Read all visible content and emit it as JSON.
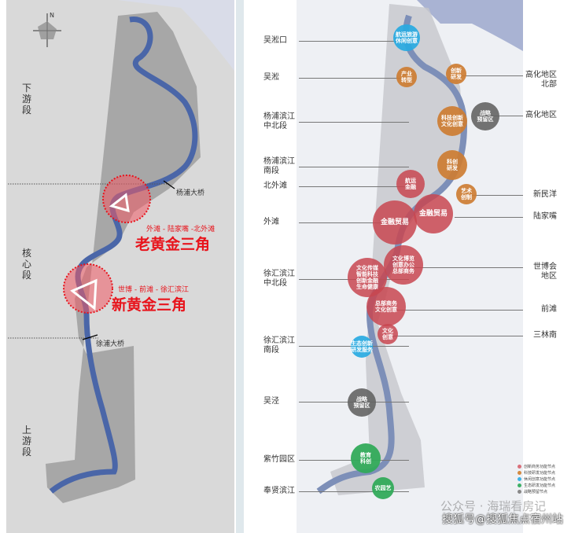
{
  "left_map": {
    "compass": "N",
    "segments": [
      "下游段",
      "核心段",
      "上游段"
    ],
    "bridges": [
      "杨浦大桥",
      "徐浦大桥"
    ],
    "old_triangle": {
      "subtitle": "外滩 - 陆家嘴 -北外滩",
      "title": "老黄金三角"
    },
    "new_triangle": {
      "subtitle": "世博 - 前滩 - 徐汇滨江",
      "title": "新黄金三角"
    },
    "colors": {
      "river": "#4a66a8",
      "highlight": "#e8141c"
    }
  },
  "right_map": {
    "left_labels": [
      "吴淞口",
      "吴淞",
      "杨浦滨江\n中北段",
      "杨浦滨江\n南段",
      "北外滩",
      "外滩",
      "徐汇滨江\n中北段",
      "徐汇滨江\n南段",
      "吴泾",
      "紫竹园区",
      "奉贤滨江"
    ],
    "right_labels": [
      "高化地区\n北部",
      "高化地区",
      "新民洋",
      "陆家嘴",
      "世博会\n地区",
      "前滩",
      "三林南"
    ],
    "nodes": [
      {
        "text": "航运旅游\n休闲创意",
        "type": "blue"
      },
      {
        "text": "产业\n转型",
        "type": "orange"
      },
      {
        "text": "创新\n研发",
        "type": "orange"
      },
      {
        "text": "战略\n预留区",
        "type": "gray"
      },
      {
        "text": "科技创新\n文化创意",
        "type": "orange"
      },
      {
        "text": "科创\n研发",
        "type": "orange"
      },
      {
        "text": "航运\n金融",
        "type": "red"
      },
      {
        "text": "艺术\n创制",
        "type": "orange"
      },
      {
        "text": "金融贸易",
        "type": "red"
      },
      {
        "text": "金融贸易",
        "type": "red"
      },
      {
        "text": "文化博览\n创意办公\n总部商务",
        "type": "red"
      },
      {
        "text": "文化传媒\n智能科技\n创新金融\n生命健康",
        "type": "red"
      },
      {
        "text": "总部商务\n文化创意",
        "type": "red"
      },
      {
        "text": "文化\n创意",
        "type": "red"
      },
      {
        "text": "生态创新\n研发服务",
        "type": "blue"
      },
      {
        "text": "战略\n预留区",
        "type": "gray"
      },
      {
        "text": "教育\n科创",
        "type": "green"
      },
      {
        "text": "农园艺",
        "type": "green"
      }
    ],
    "legend": [
      {
        "label": "创新商务功能节点",
        "color": "#d9707a"
      },
      {
        "label": "科技研发功能节点",
        "color": "#d4893f"
      },
      {
        "label": "休闲创意功能节点",
        "color": "#3fb3e6"
      },
      {
        "label": "生态研发功能节点",
        "color": "#3daf66"
      },
      {
        "label": "战略预留节点",
        "color": "#888888"
      }
    ]
  },
  "watermarks": [
    "公众号 · 海瑞看房记",
    "搜狐号@搜狐焦点宿州站"
  ]
}
